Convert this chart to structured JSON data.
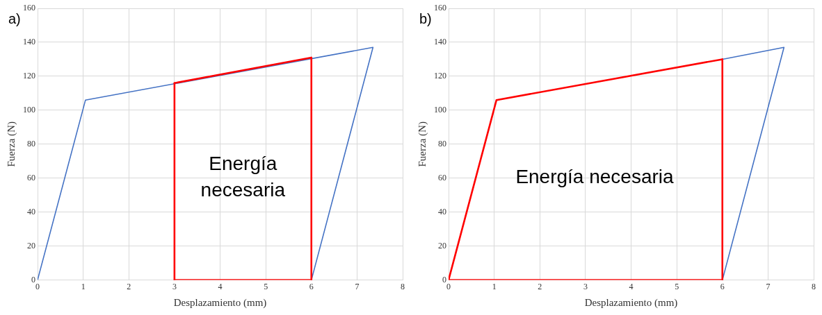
{
  "chart_data": [
    {
      "type": "line",
      "title": "a)",
      "xlabel": "Desplazamiento (mm)",
      "ylabel": "Fuerza (N)",
      "xlim": [
        0,
        8
      ],
      "xticks": [
        0,
        1,
        2,
        3,
        4,
        5,
        6,
        7,
        8
      ],
      "ylim": [
        0,
        160
      ],
      "yticks": [
        0,
        20,
        40,
        60,
        80,
        100,
        120,
        140,
        160
      ],
      "grid": true,
      "legend": false,
      "marker": "none",
      "line_style": "solid",
      "series": [
        {
          "color": "#4472c4",
          "x": [
            0,
            1.05,
            7.35,
            6
          ],
          "values": [
            0,
            106,
            137,
            0
          ]
        },
        {
          "color": "#ff0000",
          "x": [
            3,
            3
          ],
          "values": [
            0,
            116
          ]
        },
        {
          "color": "#ff0000",
          "x": [
            3,
            6
          ],
          "values": [
            116,
            131
          ]
        },
        {
          "color": "#ff0000",
          "x": [
            6,
            6
          ],
          "values": [
            131,
            0
          ]
        },
        {
          "color": "#ff0000",
          "x": [
            3,
            6
          ],
          "values": [
            0,
            0
          ]
        }
      ],
      "annotations": [
        "Energía\nnecesaria"
      ]
    },
    {
      "type": "line",
      "title": "b)",
      "xlabel": "Desplazamiento (mm)",
      "ylabel": "Fuerza (N)",
      "xlim": [
        0,
        8
      ],
      "xticks": [
        0,
        1,
        2,
        3,
        4,
        5,
        6,
        7,
        8
      ],
      "ylim": [
        0,
        160
      ],
      "yticks": [
        0,
        20,
        40,
        60,
        80,
        100,
        120,
        140,
        160
      ],
      "grid": true,
      "legend": false,
      "marker": "none",
      "line_style": "solid",
      "series": [
        {
          "color": "#4472c4",
          "x": [
            6,
            7.35,
            6
          ],
          "values": [
            130,
            137,
            0
          ]
        },
        {
          "color": "#ff0000",
          "x": [
            0,
            1.05,
            6
          ],
          "values": [
            0,
            106,
            130
          ]
        },
        {
          "color": "#ff0000",
          "x": [
            6,
            6
          ],
          "values": [
            130,
            0
          ]
        },
        {
          "color": "#ff0000",
          "x": [
            0,
            6
          ],
          "values": [
            0,
            0
          ]
        }
      ],
      "annotations": [
        "Energía necesaria"
      ]
    }
  ]
}
